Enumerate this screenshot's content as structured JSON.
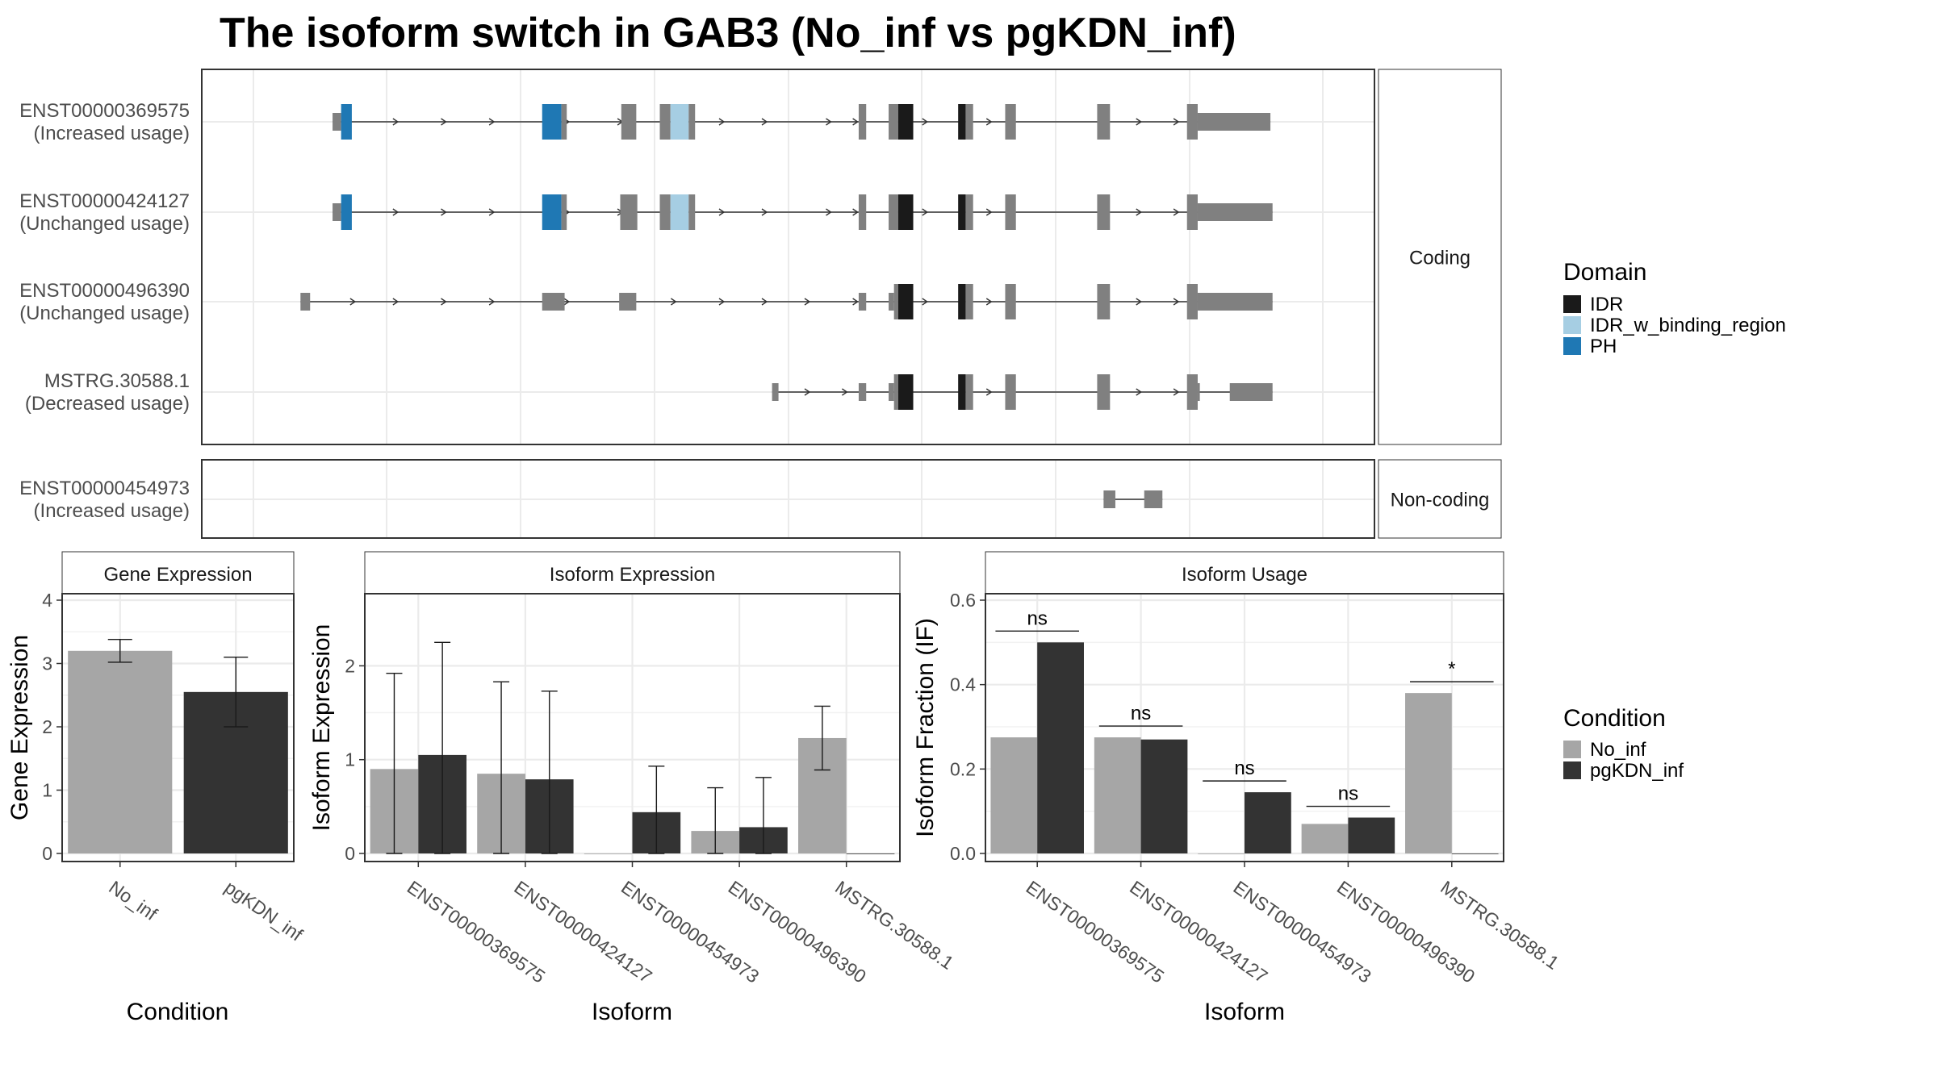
{
  "title": "The isoform switch in GAB3 (No_inf vs pgKDN_inf)",
  "colors": {
    "IDR": "#1a1a1a",
    "IDR_w_binding_region": "#a6cee3",
    "PH": "#1f78b4",
    "exon": "#808080",
    "No_inf": "#a6a6a6",
    "pgKDN_inf": "#333333",
    "grid": "#ebebeb",
    "strip_bg": "#ffffff"
  },
  "structure": {
    "x_range": [
      0,
      1000
    ],
    "panels": [
      {
        "strip": "Coding",
        "isoforms": [
          {
            "name": "ENST00000369575",
            "usage": "(Increased usage)",
            "span": [
              74,
              951
            ],
            "arrows": [
              135,
              180,
              225,
              295,
              345,
              440,
              480,
              540,
              565,
              630,
              690,
              830,
              865,
              930
            ],
            "exons": [
              {
                "s": 74,
                "e": 82,
                "t": "utr"
              },
              {
                "s": 82,
                "e": 92,
                "t": "cds",
                "d": "PH"
              },
              {
                "s": 270,
                "e": 288,
                "t": "cds",
                "d": "PH"
              },
              {
                "s": 288,
                "e": 293,
                "t": "cds"
              },
              {
                "s": 344,
                "e": 358,
                "t": "cds"
              },
              {
                "s": 380,
                "e": 390,
                "t": "cds"
              },
              {
                "s": 390,
                "e": 407,
                "t": "cds",
                "d": "IDR_w_binding_region"
              },
              {
                "s": 407,
                "e": 413,
                "t": "cds"
              },
              {
                "s": 566,
                "e": 573,
                "t": "cds"
              },
              {
                "s": 594,
                "e": 603,
                "t": "cds"
              },
              {
                "s": 603,
                "e": 617,
                "t": "cds",
                "d": "IDR"
              },
              {
                "s": 659,
                "e": 666,
                "t": "cds",
                "d": "IDR"
              },
              {
                "s": 666,
                "e": 673,
                "t": "cds"
              },
              {
                "s": 703,
                "e": 713,
                "t": "cds"
              },
              {
                "s": 789,
                "e": 801,
                "t": "cds"
              },
              {
                "s": 873,
                "e": 883,
                "t": "cds"
              },
              {
                "s": 883,
                "e": 951,
                "t": "utr"
              }
            ]
          },
          {
            "name": "ENST00000424127",
            "usage": "(Unchanged usage)",
            "span": [
              74,
              953
            ],
            "arrows": [
              135,
              180,
              225,
              295,
              345,
              440,
              480,
              540,
              565,
              630,
              690,
              830,
              865,
              930
            ],
            "exons": [
              {
                "s": 74,
                "e": 82,
                "t": "utr"
              },
              {
                "s": 82,
                "e": 92,
                "t": "cds",
                "d": "PH"
              },
              {
                "s": 270,
                "e": 288,
                "t": "cds",
                "d": "PH"
              },
              {
                "s": 288,
                "e": 293,
                "t": "cds"
              },
              {
                "s": 343,
                "e": 359,
                "t": "cds"
              },
              {
                "s": 380,
                "e": 390,
                "t": "cds"
              },
              {
                "s": 390,
                "e": 407,
                "t": "cds",
                "d": "IDR_w_binding_region"
              },
              {
                "s": 407,
                "e": 413,
                "t": "cds"
              },
              {
                "s": 566,
                "e": 573,
                "t": "cds"
              },
              {
                "s": 594,
                "e": 603,
                "t": "cds"
              },
              {
                "s": 603,
                "e": 617,
                "t": "cds",
                "d": "IDR"
              },
              {
                "s": 659,
                "e": 666,
                "t": "cds",
                "d": "IDR"
              },
              {
                "s": 666,
                "e": 673,
                "t": "cds"
              },
              {
                "s": 703,
                "e": 713,
                "t": "cds"
              },
              {
                "s": 789,
                "e": 801,
                "t": "cds"
              },
              {
                "s": 873,
                "e": 883,
                "t": "cds"
              },
              {
                "s": 883,
                "e": 953,
                "t": "utr"
              }
            ]
          },
          {
            "name": "ENST00000496390",
            "usage": "(Unchanged usage)",
            "span": [
              44,
              953
            ],
            "arrows": [
              95,
              135,
              180,
              225,
              295,
              395,
              440,
              480,
              520,
              565,
              630,
              690,
              830,
              865,
              930
            ],
            "exons": [
              {
                "s": 44,
                "e": 53,
                "t": "utr"
              },
              {
                "s": 270,
                "e": 291,
                "t": "utr"
              },
              {
                "s": 342,
                "e": 358,
                "t": "utr"
              },
              {
                "s": 566,
                "e": 573,
                "t": "utr"
              },
              {
                "s": 594,
                "e": 599,
                "t": "utr"
              },
              {
                "s": 599,
                "e": 603,
                "t": "cds"
              },
              {
                "s": 603,
                "e": 617,
                "t": "cds",
                "d": "IDR"
              },
              {
                "s": 659,
                "e": 666,
                "t": "cds",
                "d": "IDR"
              },
              {
                "s": 666,
                "e": 673,
                "t": "cds"
              },
              {
                "s": 703,
                "e": 713,
                "t": "cds"
              },
              {
                "s": 789,
                "e": 801,
                "t": "cds"
              },
              {
                "s": 873,
                "e": 883,
                "t": "cds"
              },
              {
                "s": 883,
                "e": 953,
                "t": "utr"
              }
            ]
          },
          {
            "name": "MSTRG.30588.1",
            "usage": "(Decreased usage)",
            "span": [
              485,
              953
            ],
            "arrows": [
              520,
              555,
              690,
              830,
              865,
              930
            ],
            "exons": [
              {
                "s": 485,
                "e": 491,
                "t": "utr"
              },
              {
                "s": 566,
                "e": 573,
                "t": "utr"
              },
              {
                "s": 594,
                "e": 599,
                "t": "utr"
              },
              {
                "s": 599,
                "e": 603,
                "t": "cds"
              },
              {
                "s": 603,
                "e": 617,
                "t": "cds",
                "d": "IDR"
              },
              {
                "s": 659,
                "e": 666,
                "t": "cds",
                "d": "IDR"
              },
              {
                "s": 666,
                "e": 673,
                "t": "cds"
              },
              {
                "s": 703,
                "e": 713,
                "t": "cds"
              },
              {
                "s": 789,
                "e": 801,
                "t": "cds"
              },
              {
                "s": 873,
                "e": 883,
                "t": "cds"
              },
              {
                "s": 883,
                "e": 885,
                "t": "utr"
              },
              {
                "s": 913,
                "e": 953,
                "t": "utr"
              }
            ]
          }
        ]
      },
      {
        "strip": "Non-coding",
        "isoforms": [
          {
            "name": "ENST00000454973",
            "usage": "(Increased usage)",
            "span": [
              795,
              850
            ],
            "arrows": [],
            "exons": [
              {
                "s": 795,
                "e": 806,
                "t": "utr"
              },
              {
                "s": 833,
                "e": 850,
                "t": "utr"
              }
            ]
          }
        ]
      }
    ]
  },
  "legend_domain": {
    "title": "Domain",
    "items": [
      "IDR",
      "IDR_w_binding_region",
      "PH"
    ]
  },
  "legend_condition": {
    "title": "Condition",
    "items": [
      "No_inf",
      "pgKDN_inf"
    ]
  },
  "chart_data": [
    {
      "type": "bar",
      "strip": "Gene Expression",
      "categories": [
        "No_inf",
        "pgKDN_inf"
      ],
      "values": [
        3.2,
        2.55
      ],
      "errors": [
        [
          3.02,
          3.38
        ],
        [
          2.0,
          3.1
        ]
      ],
      "xlabel": "Condition",
      "ylabel": "Gene Expression",
      "ylim": [
        0,
        4
      ],
      "yticks": [
        0,
        1,
        2,
        3,
        4
      ],
      "grid": true
    },
    {
      "type": "bar",
      "strip": "Isoform Expression",
      "categories": [
        "ENST00000369575",
        "ENST00000424127",
        "ENST00000454973",
        "ENST00000496390",
        "MSTRG.30588.1"
      ],
      "series": [
        {
          "name": "No_inf",
          "values": [
            0.9,
            0.85,
            0.0,
            0.24,
            1.23
          ],
          "errors": [
            [
              0.0,
              1.92
            ],
            [
              0.0,
              1.83
            ],
            null,
            [
              0.0,
              0.7
            ],
            [
              0.89,
              1.57
            ]
          ]
        },
        {
          "name": "pgKDN_inf",
          "values": [
            1.05,
            0.79,
            0.44,
            0.28,
            0.0
          ],
          "errors": [
            [
              0.0,
              2.25
            ],
            [
              0.0,
              1.73
            ],
            [
              0.0,
              0.93
            ],
            [
              0.0,
              0.81
            ],
            null
          ]
        }
      ],
      "xlabel": "Isoform",
      "ylabel": "Isoform Expression",
      "ylim": [
        0,
        2.7
      ],
      "yticks": [
        0,
        1,
        2
      ],
      "grid": true
    },
    {
      "type": "bar",
      "strip": "Isoform Usage",
      "categories": [
        "ENST00000369575",
        "ENST00000424127",
        "ENST00000454973",
        "ENST00000496390",
        "MSTRG.30588.1"
      ],
      "series": [
        {
          "name": "No_inf",
          "values": [
            0.275,
            0.275,
            0.0,
            0.07,
            0.38
          ]
        },
        {
          "name": "pgKDN_inf",
          "values": [
            0.5,
            0.27,
            0.145,
            0.085,
            0.0
          ]
        }
      ],
      "significance": [
        "ns",
        "ns",
        "ns",
        "ns",
        "*"
      ],
      "xlabel": "Isoform",
      "ylabel": "Isoform Fraction (IF)",
      "ylim": [
        0,
        0.6
      ],
      "yticks": [
        0.0,
        0.2,
        0.4,
        0.6
      ],
      "grid": true
    }
  ]
}
